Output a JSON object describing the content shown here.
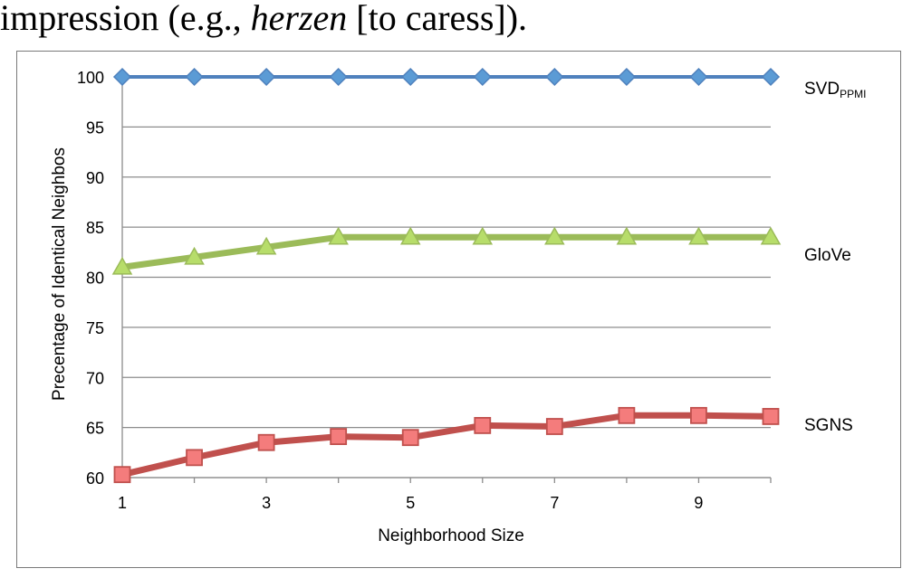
{
  "caption": {
    "before": "impression (e.g., ",
    "emph": "herzen",
    "after": " [to caress])."
  },
  "chart_data": {
    "type": "line",
    "title": "",
    "xlabel": "Neighborhood Size",
    "ylabel": "Precentage of Identical Neighbos",
    "x": [
      1,
      2,
      3,
      4,
      5,
      6,
      7,
      8,
      9,
      10
    ],
    "x_tick_labels": [
      "1",
      "3",
      "5",
      "7",
      "9"
    ],
    "x_tick_values": [
      1,
      3,
      5,
      7,
      9
    ],
    "y_tick_labels": [
      "60",
      "65",
      "70",
      "75",
      "80",
      "85",
      "90",
      "95",
      "100"
    ],
    "y_tick_values": [
      60,
      65,
      70,
      75,
      80,
      85,
      90,
      95,
      100
    ],
    "xlim": [
      1,
      10
    ],
    "ylim": [
      60,
      100
    ],
    "grid": "horizontal",
    "legend": "right, inline labels",
    "series": [
      {
        "name": "SVD",
        "name_subscript": "PPMI",
        "marker": "diamond",
        "color": "#4f81bd",
        "marker_fill": "#5b9bd5",
        "values": [
          100,
          100,
          100,
          100,
          100,
          100,
          100,
          100,
          100,
          100
        ]
      },
      {
        "name": "GloVe",
        "name_subscript": "",
        "marker": "triangle",
        "color": "#9bbb59",
        "marker_fill": "#b7dd6a",
        "values": [
          81,
          82,
          83,
          84,
          84,
          84,
          84,
          84,
          84,
          84
        ]
      },
      {
        "name": "SGNS",
        "name_subscript": "",
        "marker": "square",
        "color": "#c0504d",
        "marker_fill": "#f47c7c",
        "values": [
          60.3,
          62,
          63.5,
          64.1,
          64,
          65.2,
          65.1,
          66.2,
          66.2,
          66.1
        ]
      }
    ]
  }
}
